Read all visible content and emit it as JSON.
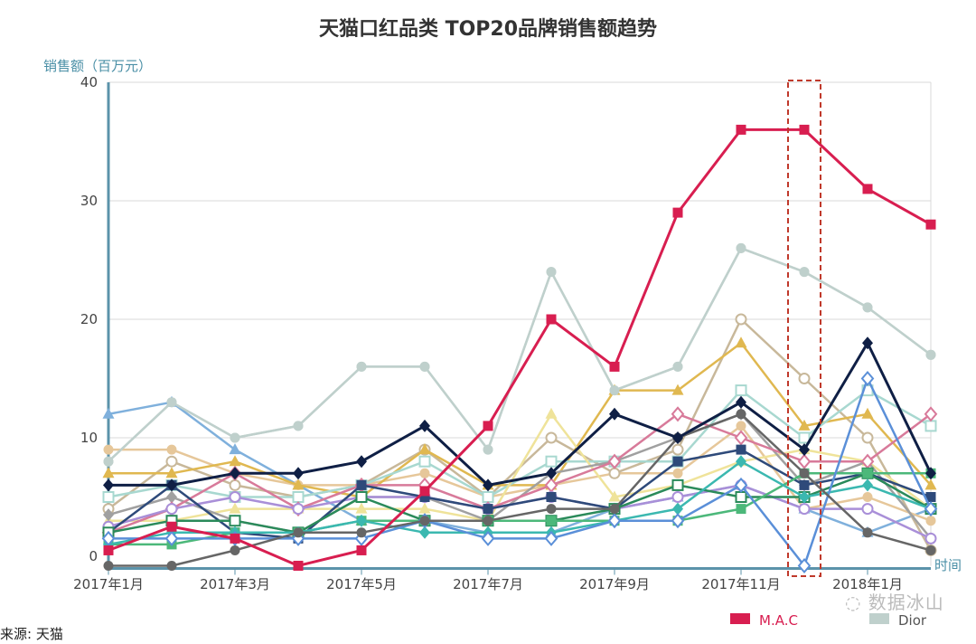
{
  "chart_data": {
    "type": "line",
    "title": "天猫口红品类 TOP20品牌销售额趋势",
    "ylabel": "销售额（百万元）",
    "xlabel": "时间",
    "ylim": [
      -1,
      40
    ],
    "yticks": [
      0,
      10,
      20,
      30,
      40
    ],
    "grid": true,
    "legend_position": "bottom-right",
    "x": [
      "2017-01",
      "2017-02",
      "2017-03",
      "2017-04",
      "2017-05",
      "2017-06",
      "2017-07",
      "2017-08",
      "2017-09",
      "2017-10",
      "2017-11",
      "2017-12",
      "2018-01",
      "2018-02"
    ],
    "xtick_labels": [
      "2017年1月",
      "2017年3月",
      "2017年5月",
      "2017年7月",
      "2017年9月",
      "2017年11月",
      "2018年1月"
    ],
    "highlight": "2017-12",
    "series": [
      {
        "values": [
          8,
          13,
          10,
          11,
          16,
          16,
          9,
          24,
          14,
          16,
          26,
          24,
          21,
          17
        ],
        "color": "#bfd0cc",
        "marker": "circle",
        "filled": true
      },
      {
        "values": [
          12,
          13,
          9,
          6,
          3,
          3,
          2,
          2,
          4,
          5,
          6,
          4,
          2,
          4
        ],
        "color": "#7fb0dc",
        "marker": "triangle",
        "filled": true
      },
      {
        "values": [
          9,
          9,
          7,
          6,
          6,
          7,
          5,
          6,
          7,
          7,
          11,
          4,
          5,
          3
        ],
        "color": "#e6c79a",
        "marker": "circle",
        "filled": true
      },
      {
        "values": [
          4,
          8,
          6,
          5,
          6,
          9,
          5,
          10,
          7,
          9,
          20,
          15,
          10,
          0.5
        ],
        "color": "#c8b89a",
        "marker": "circle",
        "filled": false
      },
      {
        "values": [
          7,
          7,
          8,
          6,
          5,
          9,
          6,
          6,
          14,
          14,
          18,
          11,
          12,
          6
        ],
        "color": "#e0b850",
        "marker": "triangle",
        "filled": true
      },
      {
        "values": [
          5,
          6,
          5,
          5,
          6,
          8,
          5,
          8,
          8,
          8,
          14,
          10,
          14,
          11
        ],
        "color": "#a8d8d0",
        "marker": "square",
        "filled": false
      },
      {
        "values": [
          3,
          3,
          4,
          4,
          4,
          4,
          3,
          12,
          5,
          6,
          8,
          9,
          8,
          4
        ],
        "color": "#efe39a",
        "marker": "triangle",
        "filled": true
      },
      {
        "values": [
          3.5,
          5,
          3,
          2,
          5,
          5,
          3,
          7,
          8,
          10,
          12,
          6,
          8,
          1.5
        ],
        "color": "#a0a0a0",
        "marker": "diamond",
        "filled": true
      },
      {
        "values": [
          2,
          4,
          7,
          4,
          6,
          6,
          4,
          6,
          8,
          12,
          10,
          8,
          8,
          12
        ],
        "color": "#d87a9a",
        "marker": "diamond",
        "filled": false
      },
      {
        "values": [
          2.5,
          4,
          5,
          4,
          5,
          5,
          4,
          5,
          4,
          5,
          6,
          4,
          4,
          1.5
        ],
        "color": "#a98fd8",
        "marker": "circle",
        "filled": false
      },
      {
        "values": [
          2,
          6,
          2,
          1.5,
          6,
          5,
          4,
          5,
          4,
          8,
          9,
          6,
          7,
          5
        ],
        "color": "#2e4a7a",
        "marker": "square",
        "filled": true
      },
      {
        "values": [
          2,
          3,
          3,
          2,
          5,
          3,
          3,
          3,
          4,
          6,
          5,
          5,
          7,
          4
        ],
        "color": "#2a8a5a",
        "marker": "square",
        "filled": false
      },
      {
        "values": [
          1,
          1,
          2,
          2,
          3,
          3,
          3,
          3,
          3,
          3,
          4,
          7,
          7,
          7
        ],
        "color": "#4cb87a",
        "marker": "square",
        "filled": true
      },
      {
        "values": [
          1,
          2,
          2,
          2,
          3,
          2,
          2,
          2,
          3,
          4,
          8,
          5,
          6,
          4
        ],
        "color": "#3bb8b0",
        "marker": "diamond",
        "filled": true
      },
      {
        "values": [
          1.5,
          1.5,
          1.5,
          1.5,
          1.5,
          3,
          1.5,
          1.5,
          3,
          3,
          6,
          -0.8,
          15,
          4
        ],
        "color": "#5a8fd8",
        "marker": "diamond",
        "filled": false
      },
      {
        "values": [
          -0.8,
          -0.8,
          0.5,
          2,
          2,
          3,
          3,
          4,
          4,
          10,
          12,
          7,
          2,
          0.5
        ],
        "color": "#666666",
        "marker": "circle",
        "filled": true
      },
      {
        "values": [
          6,
          6,
          7,
          7,
          8,
          11,
          6,
          7,
          12,
          10,
          13,
          9,
          18,
          7
        ],
        "color": "#0f1f45",
        "marker": "diamond",
        "filled": true
      },
      {
        "name": "Dior",
        "values": [
          8,
          13,
          10,
          11,
          16,
          16,
          9,
          24,
          14,
          16,
          26,
          24,
          21,
          17
        ],
        "color": "#bfd0cc",
        "marker": "circle",
        "filled": true
      },
      {
        "name": "M.A.C",
        "values": [
          0.5,
          2.5,
          1.5,
          -0.8,
          0.5,
          5.5,
          11,
          20,
          16,
          29,
          36,
          36,
          31,
          28
        ],
        "color": "#d81e50",
        "marker": "square",
        "filled": true
      }
    ],
    "legend": [
      {
        "name": "M.A.C",
        "color": "#d81e50"
      },
      {
        "name": "Dior",
        "color": "#bfd0cc"
      }
    ]
  },
  "source": "来源: 天猫",
  "watermark": "数据冰山"
}
